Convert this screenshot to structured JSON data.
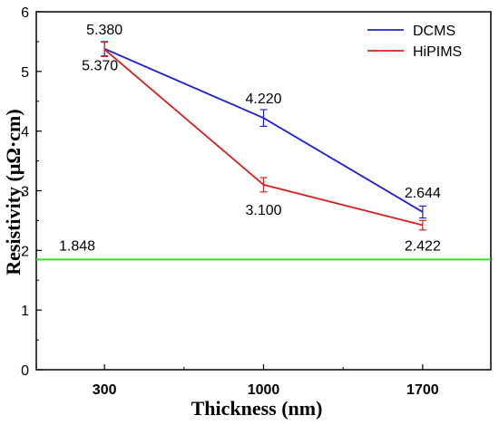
{
  "chart_data": {
    "type": "line",
    "x": [
      300,
      1000,
      1700
    ],
    "xlabel": "Thickness (nm)",
    "ylabel": "Resistivity (μΩ·cm)",
    "xlim": [
      0,
      2000
    ],
    "ylim": [
      0,
      6
    ],
    "x_ticks": [
      "300",
      "1000",
      "1700"
    ],
    "y_ticks": [
      "0",
      "1",
      "2",
      "3",
      "4",
      "5",
      "6"
    ],
    "grid": false,
    "legend_position": "top-right",
    "series": [
      {
        "name": "DCMS",
        "color": "#1f1fd6",
        "values": [
          5.38,
          4.22,
          2.644
        ],
        "errors": [
          0.12,
          0.14,
          0.1
        ],
        "labels": [
          "5.380",
          "4.220",
          "2.644"
        ]
      },
      {
        "name": "HiPIMS",
        "color": "#d61f1f",
        "values": [
          5.37,
          3.1,
          2.422
        ],
        "errors": [
          0.12,
          0.12,
          0.08
        ],
        "labels": [
          "5.370",
          "3.100",
          "2.422"
        ]
      }
    ],
    "reference_line": {
      "value": 1.848,
      "label": "1.848",
      "color": "#33dd33"
    }
  }
}
